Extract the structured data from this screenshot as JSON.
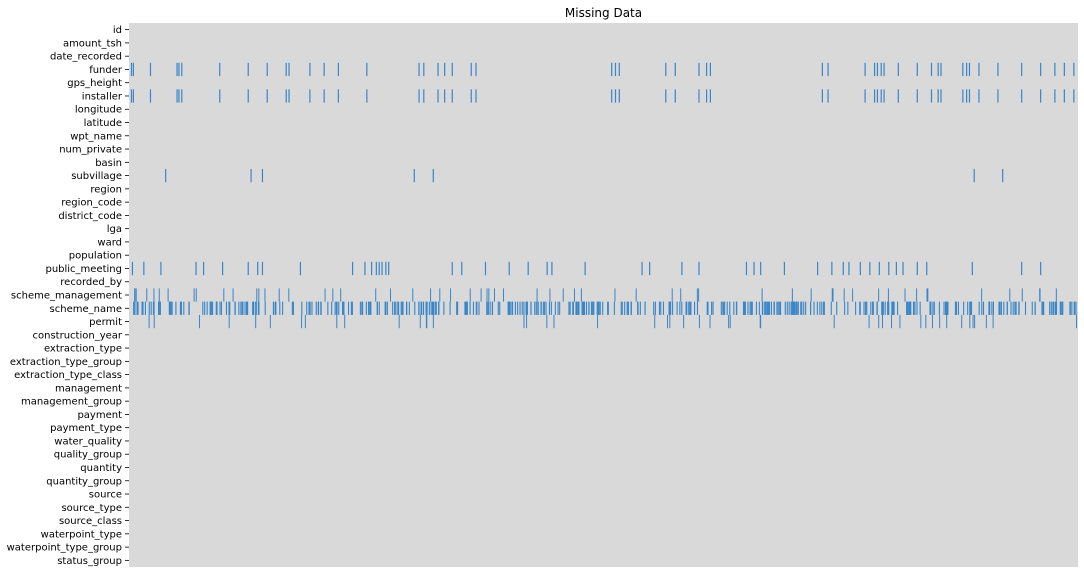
{
  "chart_data": {
    "type": "heatmap",
    "title": "Missing Data",
    "xlabel": "",
    "ylabel": "",
    "legend": "none",
    "grid": false,
    "colors": {
      "background": "#d9d9d9",
      "missing": "#3a86c8"
    },
    "row_labels": [
      "id",
      "amount_tsh",
      "date_recorded",
      "funder",
      "gps_height",
      "installer",
      "longitude",
      "latitude",
      "wpt_name",
      "num_private",
      "basin",
      "subvillage",
      "region",
      "region_code",
      "district_code",
      "lga",
      "ward",
      "population",
      "public_meeting",
      "recorded_by",
      "scheme_management",
      "scheme_name",
      "permit",
      "construction_year",
      "extraction_type",
      "extraction_type_group",
      "extraction_type_class",
      "management",
      "management_group",
      "payment",
      "payment_type",
      "water_quality",
      "quality_group",
      "quantity",
      "quantity_group",
      "source",
      "source_type",
      "source_class",
      "waterpoint_type",
      "waterpoint_type_group",
      "status_group"
    ],
    "missing_positions": {
      "funder": [
        0.002,
        0.004,
        0.022,
        0.05,
        0.052,
        0.055,
        0.095,
        0.125,
        0.145,
        0.165,
        0.168,
        0.19,
        0.205,
        0.22,
        0.25,
        0.305,
        0.31,
        0.325,
        0.332,
        0.34,
        0.36,
        0.365,
        0.508,
        0.512,
        0.516,
        0.565,
        0.575,
        0.6,
        0.608,
        0.612,
        0.73,
        0.736,
        0.775,
        0.785,
        0.788,
        0.792,
        0.795,
        0.81,
        0.83,
        0.845,
        0.852,
        0.855,
        0.878,
        0.882,
        0.885,
        0.895,
        0.915,
        0.94,
        0.96,
        0.975,
        0.985,
        0.995
      ],
      "installer": [
        0.002,
        0.004,
        0.022,
        0.05,
        0.052,
        0.055,
        0.095,
        0.125,
        0.145,
        0.165,
        0.168,
        0.19,
        0.205,
        0.22,
        0.25,
        0.305,
        0.31,
        0.325,
        0.332,
        0.34,
        0.36,
        0.365,
        0.508,
        0.512,
        0.516,
        0.565,
        0.575,
        0.6,
        0.608,
        0.612,
        0.73,
        0.736,
        0.775,
        0.785,
        0.788,
        0.792,
        0.795,
        0.81,
        0.83,
        0.845,
        0.852,
        0.855,
        0.878,
        0.882,
        0.885,
        0.895,
        0.915,
        0.94,
        0.96,
        0.975,
        0.985,
        0.995
      ],
      "subvillage": [
        0.038,
        0.128,
        0.14,
        0.3,
        0.32,
        0.89,
        0.92
      ],
      "public_meeting": [
        0.003,
        0.015,
        0.033,
        0.07,
        0.078,
        0.098,
        0.125,
        0.135,
        0.14,
        0.18,
        0.235,
        0.248,
        0.255,
        0.26,
        0.263,
        0.266,
        0.27,
        0.273,
        0.34,
        0.35,
        0.375,
        0.4,
        0.42,
        0.44,
        0.445,
        0.48,
        0.54,
        0.548,
        0.582,
        0.6,
        0.65,
        0.658,
        0.665,
        0.69,
        0.725,
        0.74,
        0.752,
        0.758,
        0.77,
        0.78,
        0.79,
        0.8,
        0.808,
        0.815,
        0.83,
        0.84,
        0.888,
        0.94,
        0.96
      ]
    },
    "scheme_name_missing_fraction": 0.47,
    "scheme_management_missing_fraction": 0.065,
    "permit_missing_fraction": 0.051
  }
}
